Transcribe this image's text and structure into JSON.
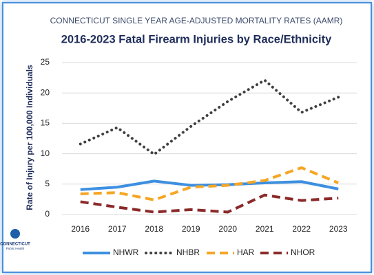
{
  "chart_data": {
    "type": "line",
    "supertitle": "CONNECTICUT SINGLE YEAR AGE-ADJUSTED MORTALITY RATES (AAMR)",
    "title": "2016-2023 Fatal Firearm Injuries by Race/Ethnicity",
    "ylabel": "Rate of Injury per 100,000 Individuals",
    "categories": [
      "2016",
      "2017",
      "2018",
      "2019",
      "2020",
      "2021",
      "2022",
      "2023"
    ],
    "series": [
      {
        "name": "NHWR",
        "color": "#3d8fe0",
        "style": "solid",
        "values": [
          4.1,
          4.5,
          5.5,
          4.8,
          4.9,
          5.2,
          5.4,
          4.2
        ]
      },
      {
        "name": "NHBR",
        "color": "#404040",
        "style": "dotted",
        "values": [
          11.6,
          14.3,
          9.9,
          14.5,
          18.6,
          22.1,
          16.8,
          19.3
        ]
      },
      {
        "name": "HAR",
        "color": "#f5a623",
        "style": "dashed",
        "values": [
          3.4,
          3.6,
          2.4,
          4.5,
          4.8,
          5.6,
          7.7,
          5.2
        ]
      },
      {
        "name": "NHOR",
        "color": "#8b2a2a",
        "style": "dashed",
        "values": [
          2.1,
          1.2,
          0.4,
          0.8,
          0.4,
          3.2,
          2.3,
          2.7
        ]
      }
    ],
    "ylim": [
      0,
      25
    ],
    "yticks": [
      0,
      5,
      10,
      15,
      20,
      25
    ],
    "grid": true,
    "logo": {
      "name": "CONNECTICUT",
      "sub": "Public Health"
    }
  }
}
